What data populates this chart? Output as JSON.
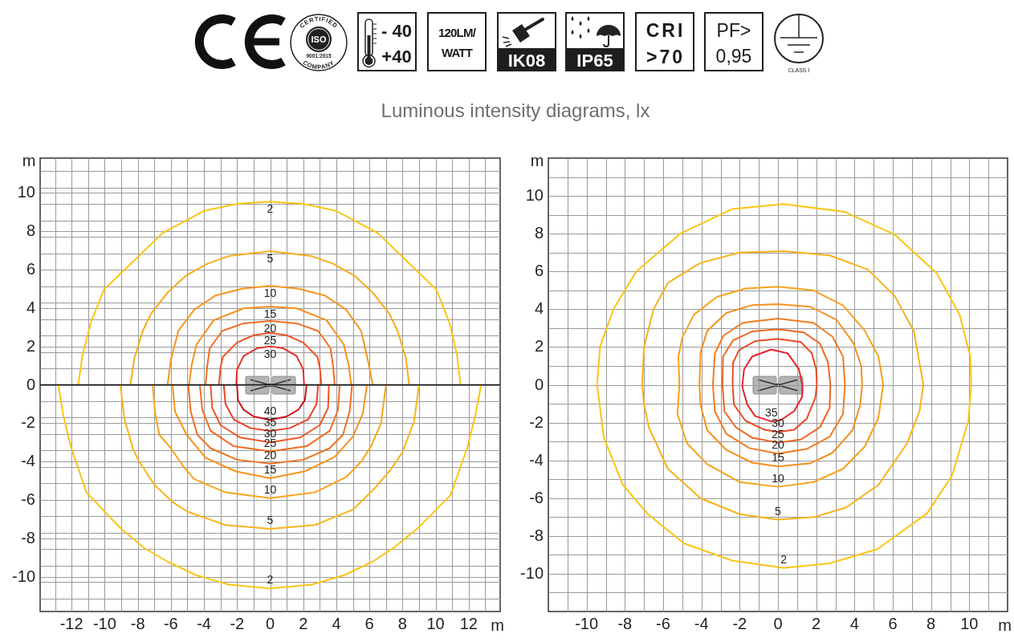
{
  "chart_data": [
    {
      "type": "other",
      "title": "Luminous intensity diagrams, lx",
      "annotations": [
        "CERTIFIED",
        "ISO",
        "9001:2015",
        "COMPANY",
        "- 40",
        "+40",
        "120LM/",
        "WATT",
        "IK08",
        "IP65",
        "CRI",
        ">70",
        "PF>",
        "0,95",
        "CLASS I"
      ]
    },
    {
      "type": "line",
      "xlabel": "m",
      "ylabel": "m",
      "xlim": [
        -13.9,
        13.9
      ],
      "ylim": [
        -11.8,
        11.8
      ],
      "xticks": [
        {
          "value": -13,
          "label": null
        },
        -12,
        {
          "value": -11,
          "label": null
        },
        -10,
        {
          "value": -9,
          "label": null
        },
        -8,
        {
          "value": -7,
          "label": null
        },
        -6,
        {
          "value": -5,
          "label": null
        },
        -4,
        {
          "value": -3,
          "label": null
        },
        -2,
        {
          "value": -1,
          "label": null
        },
        0,
        {
          "value": 1,
          "label": null
        },
        2,
        {
          "value": 3,
          "label": null
        },
        4,
        {
          "value": 5,
          "label": null
        },
        6,
        {
          "value": 7,
          "label": null
        },
        8,
        {
          "value": 9,
          "label": null
        },
        10,
        {
          "value": 11,
          "label": null
        },
        12,
        {
          "value": 13,
          "label": null
        }
      ],
      "yticks": [
        {
          "value": -11.12,
          "label": null
        },
        {
          "value": -10.26,
          "label": null
        },
        -10,
        {
          "value": -9.41,
          "label": null
        },
        {
          "value": -8.55,
          "label": null
        },
        -8,
        {
          "value": -7.7,
          "label": null
        },
        {
          "value": -6.84,
          "label": null
        },
        -6,
        {
          "value": -5.13,
          "label": null
        },
        {
          "value": -4.28,
          "label": null
        },
        -4,
        {
          "value": -3.42,
          "label": null
        },
        {
          "value": -2.57,
          "label": null
        },
        -2,
        {
          "value": -1.71,
          "label": null
        },
        {
          "value": -0.86,
          "label": null
        },
        0,
        {
          "value": 0.86,
          "label": null
        },
        {
          "value": 1.71,
          "label": null
        },
        2,
        {
          "value": 2.57,
          "label": null
        },
        {
          "value": 3.42,
          "label": null
        },
        4,
        {
          "value": 4.28,
          "label": null
        },
        {
          "value": 5.13,
          "label": null
        },
        6,
        {
          "value": 6.84,
          "label": null
        },
        {
          "value": 7.7,
          "label": null
        },
        8,
        {
          "value": 8.55,
          "label": null
        },
        {
          "value": 9.41,
          "label": null
        },
        10,
        {
          "value": 10.26,
          "label": null
        },
        {
          "value": 11.12,
          "label": null
        }
      ],
      "grid": true,
      "ref_lines": [
        {
          "axis": "y",
          "value": 0,
          "color": "#1a1a1a"
        }
      ],
      "series": [
        {
          "name": "2",
          "color": "#fbc512",
          "x": [
            -11.6,
            -11.35,
            -10.85,
            -10.05,
            -8.3,
            -6.5,
            -4,
            -2,
            0,
            2,
            4,
            6.5,
            8.3,
            10.05,
            10.85,
            11.3,
            11.5
          ],
          "values": [
            0,
            1.5,
            3.2,
            4.95,
            6.4,
            7.9,
            9.05,
            9.42,
            9.53,
            9.42,
            9.05,
            7.9,
            6.4,
            4.95,
            3.2,
            1.5,
            0
          ]
        },
        {
          "name": "5",
          "color": "#f9ab1b",
          "x": [
            -8.45,
            -8.2,
            -7.7,
            -7.2,
            -6.2,
            -5.06,
            -3.8,
            -2.5,
            0,
            2.5,
            3.8,
            5.06,
            6.2,
            7.2,
            7.7,
            8.2,
            8.4
          ],
          "values": [
            0,
            1.4,
            2.8,
            3.7,
            4.8,
            5.7,
            6.3,
            6.7,
            6.95,
            6.7,
            6.3,
            5.7,
            4.8,
            3.7,
            2.8,
            1.4,
            0
          ]
        },
        {
          "name": "10",
          "color": "#f7961d",
          "x": [
            -6.2,
            -6,
            -5.55,
            -4.6,
            -3.3,
            -1.7,
            0,
            1.7,
            3.3,
            4.6,
            5.5,
            5.9,
            6.2
          ],
          "values": [
            0,
            1.3,
            2.8,
            3.9,
            4.65,
            5,
            5.15,
            5,
            4.65,
            3.9,
            2.8,
            1.3,
            0
          ]
        },
        {
          "name": "15",
          "color": "#f7901c",
          "x": [
            -4.9,
            -4.75,
            -4.45,
            -3.4,
            -1.6,
            0,
            1.6,
            3.4,
            4.45,
            4.75,
            4.9
          ],
          "values": [
            0,
            1,
            2.1,
            3.37,
            3.98,
            4.07,
            3.98,
            3.37,
            2.1,
            1,
            0
          ]
        },
        {
          "name": "20",
          "color": "#f36d22",
          "x": [
            -3.9,
            -3.8,
            -3.65,
            -2.9,
            -1.6,
            0,
            1.6,
            2.9,
            3.65,
            3.8,
            3.9
          ],
          "values": [
            0,
            1,
            1.9,
            2.8,
            3.2,
            3.32,
            3.2,
            2.8,
            1.9,
            1,
            0
          ]
        },
        {
          "name": "25",
          "color": "#ef5325",
          "x": [
            -3.1,
            -3,
            -2.86,
            -2,
            -1,
            0,
            1,
            2,
            2.86,
            3,
            3.1
          ],
          "values": [
            0,
            0.9,
            1.45,
            2.2,
            2.58,
            2.7,
            2.58,
            2.2,
            1.45,
            0.9,
            0
          ]
        },
        {
          "name": "30",
          "color": "#ec2c2a",
          "x": [
            -2.05,
            -2,
            -1.6,
            -0.8,
            0,
            0.8,
            1.6,
            2,
            2.05
          ],
          "values": [
            0,
            0.8,
            1.5,
            1.9,
            2,
            1.9,
            1.5,
            0.8,
            0
          ]
        },
        {
          "name": "2",
          "color": "#fbc512",
          "x": [
            -12.8,
            -12.5,
            -12.05,
            -11.1,
            -10,
            -9,
            -7.6,
            -6.2,
            -4.5,
            -2.5,
            0,
            2.5,
            4.5,
            6.2,
            7.6,
            9,
            10.9,
            11.9,
            12.4,
            12.75
          ],
          "values": [
            0,
            -1.6,
            -3.2,
            -5.6,
            -6.6,
            -7.5,
            -8.5,
            -9.2,
            -9.9,
            -10.4,
            -10.6,
            -10.4,
            -9.9,
            -9.2,
            -8.4,
            -7.4,
            -5.75,
            -3.3,
            -1.6,
            0
          ]
        },
        {
          "name": "5",
          "color": "#f9b41a",
          "x": [
            -9.05,
            -8.8,
            -8.3,
            -7.95,
            -7,
            -5.9,
            -5,
            -2.7,
            0,
            2.7,
            5,
            6.3,
            7.3,
            8,
            8.7,
            9
          ],
          "values": [
            0,
            -1.8,
            -3.3,
            -3.95,
            -5.2,
            -6.1,
            -6.6,
            -7.3,
            -7.5,
            -7.3,
            -6.5,
            -5.4,
            -4.4,
            -3.5,
            -1.9,
            0
          ]
        },
        {
          "name": "10",
          "color": "#f8a41b",
          "x": [
            -7.1,
            -6.95,
            -6.7,
            -6,
            -5.2,
            -4.6,
            -2.7,
            0,
            2.7,
            4.6,
            5.5,
            6.1,
            6.7,
            7
          ],
          "values": [
            0,
            -1.5,
            -2.6,
            -3.3,
            -4.3,
            -4.9,
            -5.6,
            -5.9,
            -5.6,
            -4.8,
            -4,
            -3.2,
            -2,
            0
          ]
        },
        {
          "name": "15",
          "color": "#f6941d",
          "x": [
            -5.9,
            -5.75,
            -5.05,
            -3.9,
            -2.1,
            0,
            2.1,
            3.9,
            5,
            5.6,
            5.85
          ],
          "values": [
            0,
            -1.4,
            -2.6,
            -3.8,
            -4.5,
            -4.87,
            -4.5,
            -3.75,
            -2.7,
            -1.5,
            0
          ]
        },
        {
          "name": "20",
          "color": "#f0721f",
          "x": [
            -4.95,
            -4.8,
            -4.4,
            -3.6,
            -2,
            0,
            2,
            3.6,
            4.4,
            4.8,
            4.95
          ],
          "values": [
            0,
            -1.4,
            -2.6,
            -3.3,
            -3.9,
            -4.1,
            -3.9,
            -3.3,
            -2.6,
            -1.4,
            0
          ]
        },
        {
          "name": "25",
          "color": "#f26d22",
          "x": [
            -4.25,
            -4.1,
            -3.6,
            -2.2,
            0,
            2.2,
            3.6,
            4.1,
            4.2
          ],
          "values": [
            0,
            -1.3,
            -2.4,
            -3.2,
            -3.47,
            -3.2,
            -2.4,
            -1.3,
            0
          ]
        },
        {
          "name": "30",
          "color": "#ef5825",
          "x": [
            -3.6,
            -3.5,
            -3,
            -1.8,
            0,
            1.8,
            3,
            3.5,
            3.55
          ],
          "values": [
            0,
            -1.2,
            -2.1,
            -2.75,
            -3,
            -2.75,
            -2.1,
            -1.2,
            0
          ]
        },
        {
          "name": "35",
          "color": "#ec4027",
          "x": [
            -2.8,
            -2.7,
            -2.2,
            -1.2,
            0,
            1.2,
            2.3,
            2.8,
            2.9
          ],
          "values": [
            0,
            -1,
            -1.8,
            -2.25,
            -2.4,
            -2.25,
            -1.8,
            -1,
            0
          ]
        },
        {
          "name": "40",
          "color": "#d2121b",
          "x": [
            -2,
            -1.95,
            -1.6,
            -1,
            0,
            1,
            1.7,
            2.1,
            2.2
          ],
          "values": [
            0,
            -0.8,
            -1.3,
            -1.65,
            -1.83,
            -1.65,
            -1.3,
            -0.8,
            0
          ]
        }
      ]
    },
    {
      "type": "line",
      "xlabel": "m",
      "ylabel": "m",
      "xlim": [
        -12,
        12
      ],
      "ylim": [
        -12,
        12
      ],
      "xticks": [
        {
          "value": -11,
          "label": null
        },
        -10,
        {
          "value": -9,
          "label": null
        },
        -8,
        {
          "value": -7,
          "label": null
        },
        -6,
        {
          "value": -5,
          "label": null
        },
        -4,
        {
          "value": -3,
          "label": null
        },
        -2,
        {
          "value": -1,
          "label": null
        },
        0,
        {
          "value": 1,
          "label": null
        },
        2,
        {
          "value": 3,
          "label": null
        },
        4,
        {
          "value": 5,
          "label": null
        },
        6,
        {
          "value": 7,
          "label": null
        },
        8,
        {
          "value": 9,
          "label": null
        },
        10,
        {
          "value": 11,
          "label": null
        }
      ],
      "yticks": [
        {
          "value": -11,
          "label": null
        },
        -10,
        {
          "value": -9,
          "label": null
        },
        -8,
        {
          "value": -7,
          "label": null
        },
        -6,
        {
          "value": -5,
          "label": null
        },
        -4,
        {
          "value": -3,
          "label": null
        },
        -2,
        {
          "value": -1,
          "label": null
        },
        0,
        {
          "value": 1,
          "label": null
        },
        2,
        {
          "value": 3,
          "label": null
        },
        4,
        {
          "value": 5,
          "label": null
        },
        6,
        {
          "value": 7,
          "label": null
        },
        8,
        {
          "value": 9,
          "label": null
        },
        10,
        {
          "value": 11,
          "label": null
        }
      ],
      "grid": true,
      "series": [
        {
          "name": "2",
          "color": "#fbc512",
          "x": [
            -9.45,
            -9.3,
            -8.6,
            -7.4,
            -5.1,
            -2.4,
            0.3,
            3.5,
            6.1,
            8.3,
            9.5,
            10.05,
            10.1,
            null,
            10.1,
            9.95,
            9.1,
            7.8,
            5.2,
            2.7,
            0.3,
            -2.4,
            -4.9,
            -6.8,
            -8.1,
            -9.1,
            -9.45
          ],
          "values": [
            0,
            2,
            4,
            6,
            8,
            9.3,
            9.57,
            9.15,
            7.95,
            5.9,
            3.7,
            1.5,
            0,
            null,
            0,
            -1.9,
            -4.8,
            -6.8,
            -8.7,
            -9.45,
            -9.7,
            -9.3,
            -8.4,
            -6.85,
            -5.3,
            -2.8,
            0
          ]
        },
        {
          "name": "5",
          "color": "#f9b11a",
          "x": [
            -7.1,
            -7,
            -6.5,
            -5.75,
            -4.05,
            -2,
            0.3,
            2.7,
            4.7,
            6.1,
            7.1,
            7.6,
            null,
            7.6,
            7.4,
            6.75,
            5.25,
            3.55,
            1.9,
            0,
            -2,
            -4.05,
            -5.75,
            -6.75,
            -7,
            -7.1
          ],
          "values": [
            0,
            2,
            4,
            5.4,
            6.45,
            7,
            7.07,
            6.85,
            6.1,
            4.7,
            2.85,
            0,
            null,
            0,
            -1.4,
            -3.1,
            -5.3,
            -6.5,
            -7,
            -7.14,
            -6.85,
            -6,
            -4.45,
            -2.25,
            -1,
            0
          ]
        },
        {
          "name": "10",
          "color": "#f7a21c",
          "x": [
            -5.15,
            -5.2,
            -5,
            -4.4,
            -3.2,
            -1.7,
            0,
            1.85,
            3.4,
            4.55,
            5.25,
            5.5,
            null,
            5.5,
            5.25,
            4.55,
            3.4,
            1.85,
            0,
            -2,
            -3.7,
            -4.75,
            -5.25,
            -5.15
          ],
          "values": [
            0,
            1.5,
            2.5,
            3.7,
            4.65,
            5.1,
            5.19,
            5,
            4.2,
            2.85,
            1.5,
            0,
            null,
            0,
            -1.75,
            -3.25,
            -4.45,
            -5.15,
            -5.4,
            -5.15,
            -4.2,
            -3.1,
            -1.55,
            0
          ]
        },
        {
          "name": "15",
          "color": "#f5901e",
          "x": [
            -4.1,
            -4.05,
            -3.7,
            -2.7,
            -1.35,
            0,
            1.7,
            3.05,
            3.95,
            4.35,
            4.4,
            null,
            4.4,
            4.3,
            3.9,
            2.85,
            1.7,
            0,
            -1.35,
            -2.7,
            -3.7,
            -4.05,
            -4.1
          ],
          "values": [
            0,
            1.7,
            2.85,
            3.8,
            4.22,
            4.27,
            4.13,
            3.45,
            2.2,
            1,
            0,
            null,
            0,
            -1.05,
            -2.4,
            -3.6,
            -4.15,
            -4.32,
            -4.12,
            -3.45,
            -2.4,
            -1.05,
            0
          ]
        },
        {
          "name": "20",
          "color": "#f37b21",
          "x": [
            -3.4,
            -3.3,
            -2.85,
            -1.85,
            0,
            1.85,
            2.85,
            3.4,
            3.5,
            null,
            3.5,
            3.4,
            2.7,
            1.5,
            0,
            -1.5,
            -2.7,
            -3.3,
            -3.4
          ],
          "values": [
            0,
            1.65,
            2.6,
            3.28,
            3.5,
            3.28,
            2.55,
            1.5,
            0,
            null,
            0,
            -1.55,
            -2.75,
            -3.4,
            -3.64,
            -3.35,
            -2.6,
            -1.4,
            0
          ]
        },
        {
          "name": "25",
          "color": "#f06524",
          "x": [
            -2.9,
            -2.87,
            -2.35,
            -1.35,
            0,
            1.35,
            2.2,
            2.62,
            2.74,
            null,
            2.74,
            2.7,
            2.2,
            1.2,
            0,
            -1.35,
            -2.2,
            -2.8,
            -2.9
          ],
          "values": [
            0,
            1.5,
            2.35,
            2.82,
            2.94,
            2.77,
            2.18,
            1.16,
            0,
            null,
            0,
            -1.22,
            -2.24,
            -2.9,
            -3.06,
            -2.8,
            -2.25,
            -1.4,
            0
          ]
        },
        {
          "name": "30",
          "color": "#ec4a27",
          "x": [
            -2.37,
            -2.35,
            -2.03,
            -1.2,
            0,
            1.2,
            1.77,
            2,
            2.03,
            null,
            2.03,
            1.95,
            1.5,
            0.85,
            0,
            -0.7,
            -1.7,
            -2.3,
            -2.37
          ],
          "values": [
            0,
            1.16,
            1.84,
            2.31,
            2.43,
            2.26,
            1.67,
            0.82,
            0,
            null,
            0,
            -0.7,
            -1.8,
            -2.38,
            -2.5,
            -2.38,
            -1.9,
            -1.05,
            0
          ]
        },
        {
          "name": "35",
          "color": "#e8232a",
          "x": [
            -1.86,
            -1.77,
            -1.35,
            -0.35,
            0.5,
            1.1,
            1.27,
            null,
            1.27,
            1.27,
            0.85,
            0.15,
            -0.35,
            -1.2,
            -1.6,
            -1.84,
            -1.86
          ],
          "values": [
            0,
            0.82,
            1.5,
            1.87,
            1.67,
            0.82,
            0,
            null,
            0,
            -0.63,
            -1.39,
            -1.87,
            -1.94,
            -1.65,
            -1.05,
            -0.2,
            0
          ]
        }
      ]
    }
  ]
}
